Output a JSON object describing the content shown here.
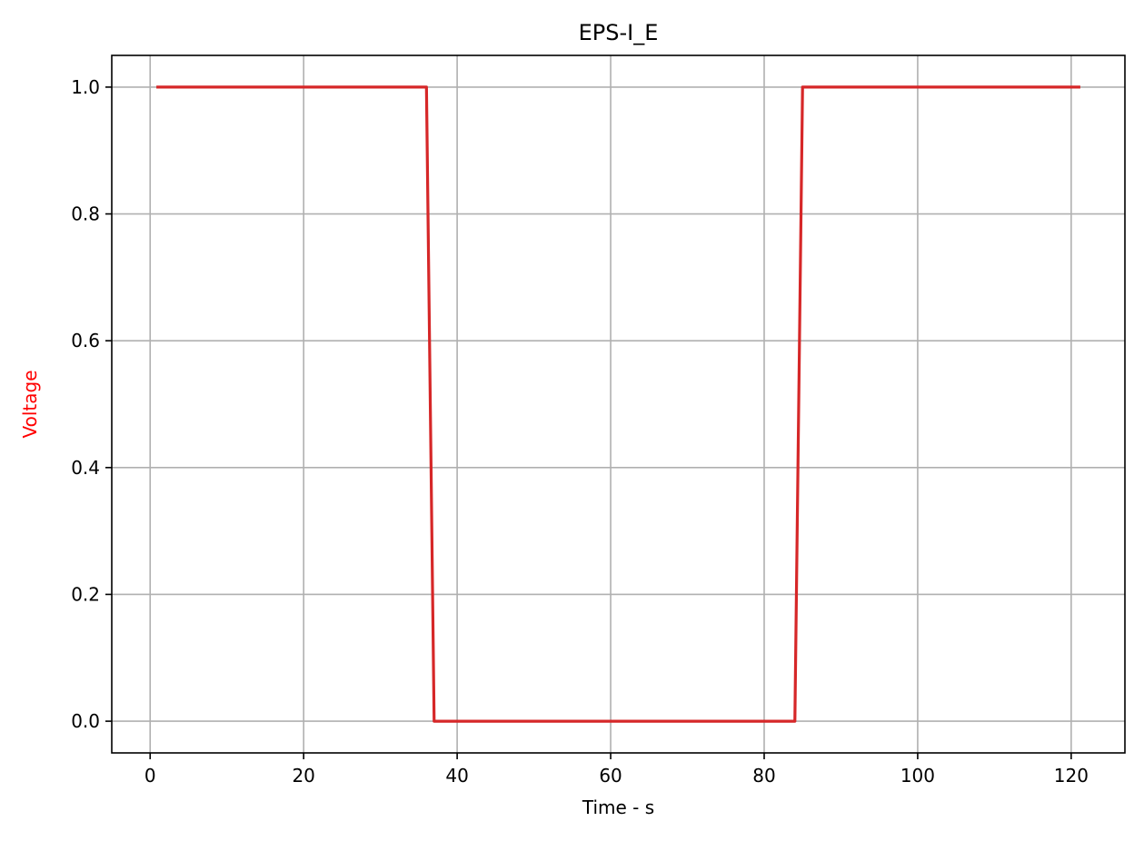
{
  "chart_data": {
    "type": "line",
    "title": "EPS-I_E",
    "xlabel": "Time - s",
    "ylabel": "Voltage",
    "ylabel_color": "#ff0000",
    "xlim": [
      -5,
      127
    ],
    "ylim": [
      -0.05,
      1.05
    ],
    "xticks": [
      0,
      20,
      40,
      60,
      80,
      100,
      120
    ],
    "yticks": [
      0.0,
      0.2,
      0.4,
      0.6,
      0.8,
      1.0
    ],
    "xtick_labels": [
      "0",
      "20",
      "40",
      "60",
      "80",
      "100",
      "120"
    ],
    "ytick_labels": [
      "0.0",
      "0.2",
      "0.4",
      "0.6",
      "0.8",
      "1.0"
    ],
    "grid": true,
    "series": [
      {
        "color": "#d62728",
        "x": [
          1,
          36,
          37,
          84,
          85,
          121
        ],
        "y": [
          1.0,
          1.0,
          0.0,
          0.0,
          1.0,
          1.0
        ]
      }
    ]
  }
}
